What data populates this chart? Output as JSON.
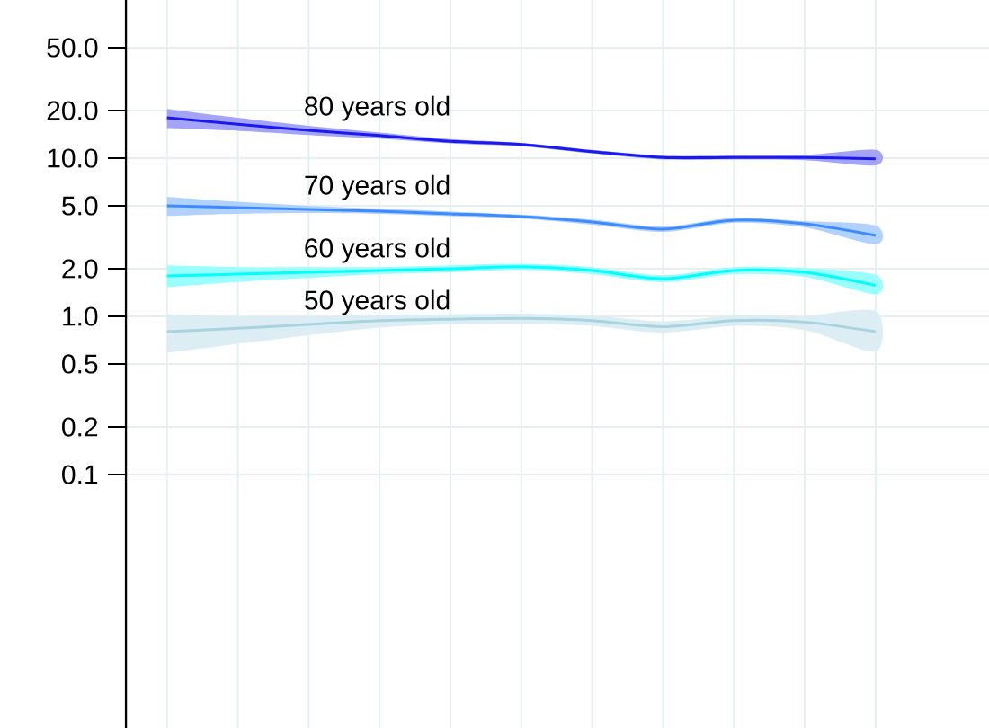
{
  "chart_data": {
    "type": "line",
    "log": "y",
    "grid": true,
    "categories": [
      null,
      null,
      null,
      null,
      null,
      null,
      null,
      null,
      null,
      null,
      null
    ],
    "ylim": [
      0.0025,
      100
    ],
    "yticks": [
      {
        "value": 50,
        "label": "50.0"
      },
      {
        "value": 20,
        "label": "20.0"
      },
      {
        "value": 10,
        "label": "10.0"
      },
      {
        "value": 5,
        "label": "5.0"
      },
      {
        "value": 2,
        "label": "2.0"
      },
      {
        "value": 1,
        "label": "1.0"
      },
      0.5,
      0.2,
      0.1
    ],
    "series": [
      {
        "name": "80 years old",
        "color": "#1a1aee",
        "values": [
          18.0,
          16.4,
          15.0,
          13.9,
          12.8,
          12.2,
          11.0,
          10.1,
          10.1,
          10.1,
          9.9
        ],
        "upper": [
          20.5,
          18.0,
          16.0,
          14.5,
          13.2,
          12.5,
          11.3,
          10.4,
          10.4,
          10.5,
          11.3
        ],
        "lower": [
          15.5,
          14.9,
          14.0,
          13.3,
          12.4,
          11.9,
          10.7,
          9.8,
          9.8,
          9.7,
          9.0
        ]
      },
      {
        "name": "70 years old",
        "color": "#3d8cff",
        "values": [
          5.0,
          4.87,
          4.74,
          4.62,
          4.45,
          4.27,
          3.95,
          3.56,
          4.06,
          3.85,
          3.25
        ],
        "upper": [
          5.7,
          5.3,
          5.0,
          4.8,
          4.6,
          4.4,
          4.1,
          3.7,
          4.2,
          4.0,
          3.75
        ],
        "lower": [
          4.3,
          4.45,
          4.5,
          4.45,
          4.3,
          4.15,
          3.8,
          3.42,
          3.9,
          3.65,
          2.85
        ]
      },
      {
        "name": "60 years old",
        "color": "#00ffff",
        "values": [
          1.8,
          1.85,
          1.9,
          1.95,
          2.0,
          2.06,
          1.95,
          1.73,
          1.95,
          1.9,
          1.57
        ],
        "upper": [
          2.1,
          2.05,
          2.05,
          2.05,
          2.1,
          2.15,
          2.05,
          1.82,
          2.05,
          2.02,
          1.83
        ],
        "lower": [
          1.53,
          1.65,
          1.75,
          1.85,
          1.9,
          1.97,
          1.85,
          1.64,
          1.85,
          1.78,
          1.38
        ]
      },
      {
        "name": "50 years old",
        "color": "#a8d4e0",
        "values": [
          0.8,
          0.84,
          0.89,
          0.94,
          0.96,
          0.97,
          0.94,
          0.86,
          0.94,
          0.92,
          0.8
        ],
        "upper": [
          1.03,
          1.0,
          1.0,
          1.02,
          1.03,
          1.04,
          1.01,
          0.93,
          1.01,
          1.01,
          1.08
        ],
        "lower": [
          0.59,
          0.67,
          0.76,
          0.85,
          0.89,
          0.9,
          0.87,
          0.79,
          0.87,
          0.82,
          0.6
        ]
      }
    ]
  }
}
